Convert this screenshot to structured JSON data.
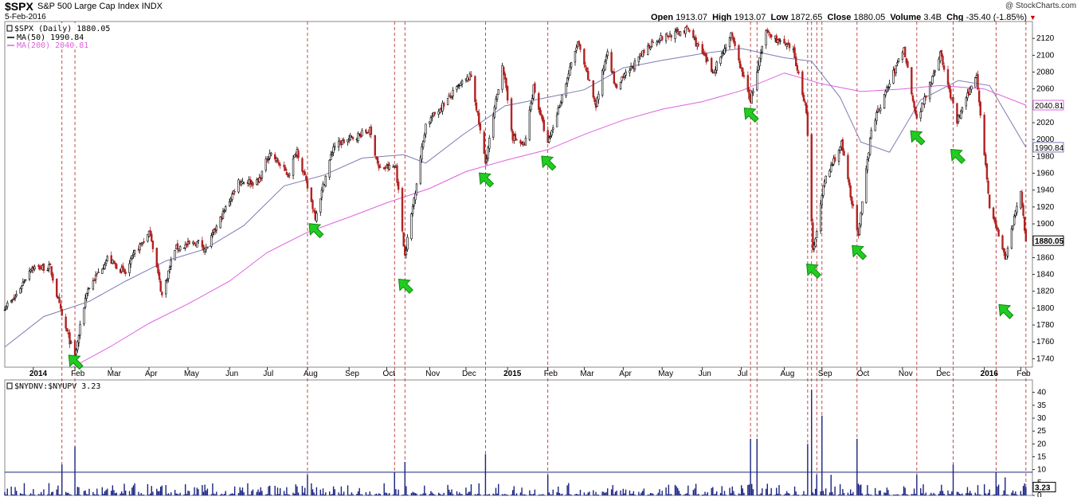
{
  "header": {
    "symbol": "$SPX",
    "name": "S&P 500 Large Cap Index",
    "exchange": "INDX",
    "date": "5-Feb-2016",
    "open_label": "Open",
    "open": "1913.07",
    "high_label": "High",
    "high": "1913.07",
    "low_label": "Low",
    "low": "1872.65",
    "close_label": "Close",
    "close": "1880.05",
    "volume_label": "Volume",
    "volume": "3.4B",
    "chg_label": "Chg",
    "chg": "-35.40 (-1.85%)",
    "brand": "@ StockCharts.com"
  },
  "colors": {
    "up": "#000000",
    "down": "#b22222",
    "ma50": "#7b7bb5",
    "ma200": "#e060e0",
    "vlines": "#b22222",
    "arrows": "#22cc22",
    "ratio_bars": "#1a237e",
    "threshold": "#1a237e"
  },
  "chart_data": [
    {
      "type": "candlestick",
      "title": "$SPX (Daily) 1880.05",
      "legend": [
        {
          "name": "$SPX (Daily) 1880.05",
          "color": "#000000"
        },
        {
          "name": "MA(50) 1990.84",
          "color": "#7b7bb5"
        },
        {
          "name": "MA(200) 2040.81",
          "color": "#e060e0"
        }
      ],
      "ylim": [
        1730,
        2140
      ],
      "y_ticks": [
        1740,
        1760,
        1780,
        1800,
        1820,
        1840,
        1860,
        1880,
        1900,
        1920,
        1940,
        1960,
        1980,
        2000,
        2020,
        2040,
        2060,
        2080,
        2100,
        2120
      ],
      "x_range": [
        "2013-12-11",
        "2016-02-10"
      ],
      "x_ticks": [
        {
          "label": "2014",
          "date": "2014-01-02"
        },
        {
          "label": "Feb",
          "date": "2014-02-03"
        },
        {
          "label": "Mar",
          "date": "2014-03-03"
        },
        {
          "label": "Apr",
          "date": "2014-04-01"
        },
        {
          "label": "May",
          "date": "2014-05-01"
        },
        {
          "label": "Jun",
          "date": "2014-06-02"
        },
        {
          "label": "Jul",
          "date": "2014-07-01"
        },
        {
          "label": "Aug",
          "date": "2014-08-01"
        },
        {
          "label": "Sep",
          "date": "2014-09-02"
        },
        {
          "label": "Oct",
          "date": "2014-10-01"
        },
        {
          "label": "Nov",
          "date": "2014-11-03"
        },
        {
          "label": "Dec",
          "date": "2014-12-01"
        },
        {
          "label": "2015",
          "date": "2015-01-02"
        },
        {
          "label": "Feb",
          "date": "2015-02-02"
        },
        {
          "label": "Mar",
          "date": "2015-03-02"
        },
        {
          "label": "Apr",
          "date": "2015-04-01"
        },
        {
          "label": "May",
          "date": "2015-05-01"
        },
        {
          "label": "Jun",
          "date": "2015-06-01"
        },
        {
          "label": "Jul",
          "date": "2015-07-01"
        },
        {
          "label": "Aug",
          "date": "2015-08-03"
        },
        {
          "label": "Sep",
          "date": "2015-09-01"
        },
        {
          "label": "Oct",
          "date": "2015-10-01"
        },
        {
          "label": "Nov",
          "date": "2015-11-02"
        },
        {
          "label": "Dec",
          "date": "2015-12-01"
        },
        {
          "label": "2016",
          "date": "2016-01-04"
        },
        {
          "label": "Feb",
          "date": "2016-02-01"
        }
      ],
      "price_anchors": [
        [
          "2013-12-11",
          1802
        ],
        [
          "2013-12-18",
          1810
        ],
        [
          "2013-12-31",
          1848
        ],
        [
          "2014-01-15",
          1848
        ],
        [
          "2014-01-24",
          1790
        ],
        [
          "2014-02-03",
          1742
        ],
        [
          "2014-02-12",
          1820
        ],
        [
          "2014-02-28",
          1859
        ],
        [
          "2014-03-14",
          1841
        ],
        [
          "2014-03-21",
          1866
        ],
        [
          "2014-04-02",
          1890
        ],
        [
          "2014-04-11",
          1815
        ],
        [
          "2014-04-21",
          1871
        ],
        [
          "2014-05-09",
          1878
        ],
        [
          "2014-05-15",
          1870
        ],
        [
          "2014-06-09",
          1951
        ],
        [
          "2014-06-24",
          1949
        ],
        [
          "2014-07-03",
          1985
        ],
        [
          "2014-07-17",
          1958
        ],
        [
          "2014-07-24",
          1988
        ],
        [
          "2014-08-07",
          1909
        ],
        [
          "2014-08-21",
          1992
        ],
        [
          "2014-09-18",
          2011
        ],
        [
          "2014-09-25",
          1965
        ],
        [
          "2014-10-08",
          1968
        ],
        [
          "2014-10-15",
          1862
        ],
        [
          "2014-10-31",
          2018
        ],
        [
          "2014-11-28",
          2067
        ],
        [
          "2014-12-05",
          2075
        ],
        [
          "2014-12-16",
          1972
        ],
        [
          "2014-12-29",
          2090
        ],
        [
          "2015-01-06",
          2003
        ],
        [
          "2015-01-15",
          1992
        ],
        [
          "2015-01-22",
          2063
        ],
        [
          "2015-02-02",
          1994
        ],
        [
          "2015-02-25",
          2115
        ],
        [
          "2015-03-11",
          2040
        ],
        [
          "2015-03-20",
          2108
        ],
        [
          "2015-03-26",
          2061
        ],
        [
          "2015-04-24",
          2117
        ],
        [
          "2015-05-21",
          2131
        ],
        [
          "2015-06-09",
          2080
        ],
        [
          "2015-06-23",
          2124
        ],
        [
          "2015-07-08",
          2046
        ],
        [
          "2015-07-20",
          2128
        ],
        [
          "2015-08-10",
          2104
        ],
        [
          "2015-08-20",
          2035
        ],
        [
          "2015-08-25",
          1867
        ],
        [
          "2015-09-03",
          1951
        ],
        [
          "2015-09-16",
          1995
        ],
        [
          "2015-09-29",
          1884
        ],
        [
          "2015-10-09",
          2014
        ],
        [
          "2015-11-03",
          2109
        ],
        [
          "2015-11-13",
          2023
        ],
        [
          "2015-12-01",
          2102
        ],
        [
          "2015-12-14",
          2021
        ],
        [
          "2015-12-29",
          2078
        ],
        [
          "2016-01-08",
          1922
        ],
        [
          "2016-01-20",
          1859
        ],
        [
          "2016-02-01",
          1939
        ],
        [
          "2016-02-05",
          1880
        ]
      ],
      "ma50": [
        [
          "2013-12-11",
          1754
        ],
        [
          "2014-01-10",
          1790
        ],
        [
          "2014-02-14",
          1808
        ],
        [
          "2014-03-14",
          1832
        ],
        [
          "2014-04-14",
          1856
        ],
        [
          "2014-05-14",
          1870
        ],
        [
          "2014-06-13",
          1898
        ],
        [
          "2014-07-14",
          1945
        ],
        [
          "2014-08-14",
          1958
        ],
        [
          "2014-09-12",
          1978
        ],
        [
          "2014-10-14",
          1982
        ],
        [
          "2014-10-31",
          1972
        ],
        [
          "2014-11-28",
          2005
        ],
        [
          "2014-12-31",
          2040
        ],
        [
          "2015-02-02",
          2050
        ],
        [
          "2015-03-02",
          2059
        ],
        [
          "2015-04-01",
          2085
        ],
        [
          "2015-05-01",
          2094
        ],
        [
          "2015-06-01",
          2102
        ],
        [
          "2015-07-01",
          2108
        ],
        [
          "2015-08-03",
          2097
        ],
        [
          "2015-08-24",
          2093
        ],
        [
          "2015-09-15",
          2050
        ],
        [
          "2015-10-01",
          1997
        ],
        [
          "2015-10-23",
          1985
        ],
        [
          "2015-11-16",
          2047
        ],
        [
          "2015-12-15",
          2070
        ],
        [
          "2016-01-08",
          2064
        ],
        [
          "2016-02-05",
          1990.84
        ]
      ],
      "ma200": [
        [
          "2014-01-31",
          1729
        ],
        [
          "2014-03-03",
          1755
        ],
        [
          "2014-04-01",
          1782
        ],
        [
          "2014-05-01",
          1805
        ],
        [
          "2014-06-02",
          1832
        ],
        [
          "2014-07-01",
          1866
        ],
        [
          "2014-08-01",
          1890
        ],
        [
          "2014-09-02",
          1908
        ],
        [
          "2014-10-01",
          1925
        ],
        [
          "2014-11-03",
          1942
        ],
        [
          "2014-12-01",
          1962
        ],
        [
          "2015-01-02",
          1976
        ],
        [
          "2015-02-02",
          1988
        ],
        [
          "2015-03-02",
          2006
        ],
        [
          "2015-04-01",
          2023
        ],
        [
          "2015-05-01",
          2036
        ],
        [
          "2015-06-01",
          2045
        ],
        [
          "2015-07-01",
          2058
        ],
        [
          "2015-08-03",
          2079
        ],
        [
          "2015-09-01",
          2066
        ],
        [
          "2015-10-01",
          2057
        ],
        [
          "2015-11-02",
          2060
        ],
        [
          "2015-12-01",
          2064
        ],
        [
          "2016-01-04",
          2060
        ],
        [
          "2016-02-05",
          2040.81
        ]
      ],
      "ma_labels": [
        {
          "name": "MA(200)",
          "value": "2040.81"
        },
        {
          "name": "MA(50)",
          "value": "1990.84"
        },
        {
          "name": "last",
          "value": "1880.05"
        }
      ]
    },
    {
      "type": "bar",
      "title": "$NYDNV:$NYUPV 3.23",
      "ylim": [
        0,
        43
      ],
      "y_ticks": [
        0,
        5,
        10,
        15,
        20,
        25,
        30,
        35,
        40
      ],
      "threshold": 9,
      "last_value": "3.23",
      "spikes": [
        [
          "2014-01-24",
          12
        ],
        [
          "2014-02-03",
          19
        ],
        [
          "2014-08-01",
          8
        ],
        [
          "2014-10-07",
          9
        ],
        [
          "2014-10-15",
          13
        ],
        [
          "2014-12-16",
          16
        ],
        [
          "2015-02-02",
          8
        ],
        [
          "2015-07-08",
          22
        ],
        [
          "2015-07-13",
          22
        ],
        [
          "2015-08-21",
          20
        ],
        [
          "2015-08-24",
          41
        ],
        [
          "2015-08-28",
          8
        ],
        [
          "2015-09-01",
          31
        ],
        [
          "2015-09-08",
          8
        ],
        [
          "2015-09-28",
          22
        ],
        [
          "2015-11-13",
          8
        ],
        [
          "2015-12-11",
          12
        ],
        [
          "2016-01-13",
          9
        ],
        [
          "2016-01-20",
          7
        ],
        [
          "2016-02-05",
          3.23
        ]
      ]
    }
  ],
  "vlines": [
    "2014-01-24",
    "2014-02-03",
    "2014-08-01",
    "2014-10-07",
    "2014-10-15",
    "2014-12-16",
    "2015-02-02",
    "2015-07-08",
    "2015-07-13",
    "2015-08-21",
    "2015-08-24",
    "2015-08-28",
    "2015-09-01",
    "2015-09-28",
    "2015-11-13",
    "2015-12-11",
    "2016-01-13",
    "2016-02-05"
  ],
  "arrows": [
    [
      "2014-02-03",
      1737
    ],
    [
      "2014-08-07",
      1893
    ],
    [
      "2014-10-15",
      1827
    ],
    [
      "2014-12-16",
      1953
    ],
    [
      "2015-02-02",
      1973
    ],
    [
      "2015-07-08",
      2030
    ],
    [
      "2015-08-25",
      1845
    ],
    [
      "2015-09-29",
      1867
    ],
    [
      "2015-11-13",
      2003
    ],
    [
      "2015-12-14",
      1981
    ],
    [
      "2016-01-20",
      1797
    ]
  ]
}
